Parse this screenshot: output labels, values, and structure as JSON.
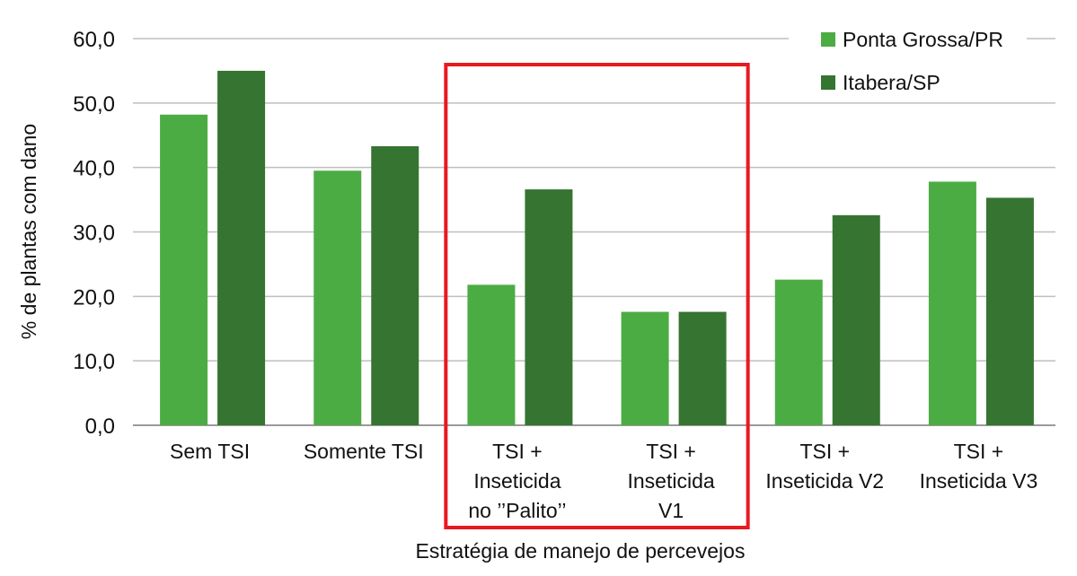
{
  "chart_data": {
    "type": "bar",
    "title": "",
    "xlabel": "Estratégia de manejo de percevejos",
    "ylabel": "% de plantas com dano",
    "ylim": [
      0,
      60
    ],
    "yticks": [
      "0,0",
      "10,0",
      "20,0",
      "30,0",
      "40,0",
      "50,0",
      "60,0"
    ],
    "categories": [
      [
        "Sem TSI"
      ],
      [
        "Somente TSI"
      ],
      [
        "TSI +",
        "Inseticida",
        "no ’’Palito’’"
      ],
      [
        "TSI +",
        "Inseticida",
        "V1"
      ],
      [
        "TSI +",
        "Inseticida V2"
      ],
      [
        "TSI +",
        "Inseticida V3"
      ]
    ],
    "series": [
      {
        "name": "Ponta Grossa/PR",
        "color": "#4cac44",
        "values": [
          48.2,
          39.5,
          21.8,
          17.6,
          22.6,
          37.8
        ]
      },
      {
        "name": "Itabera/SP",
        "color": "#357431",
        "values": [
          55.0,
          43.3,
          36.6,
          17.6,
          32.6,
          35.3
        ]
      }
    ],
    "grid": true,
    "legend": "top-right",
    "highlight": {
      "categories": [
        2,
        3
      ],
      "color": "#e8191f"
    }
  }
}
